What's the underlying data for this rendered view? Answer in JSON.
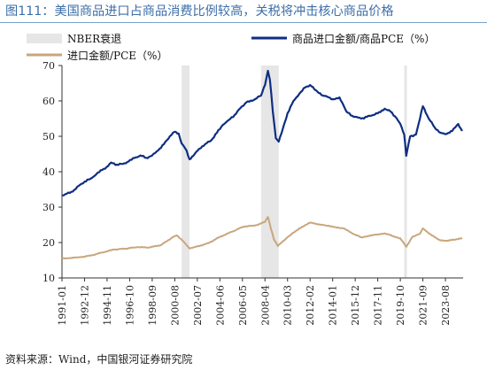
{
  "header": {
    "title": "图111：美国商品进口占商品消费比例较高，关税将冲击核心商品价格"
  },
  "footer": {
    "source": "资料来源：Wind，中国银河证券研究院"
  },
  "colors": {
    "title": "#3d6fa8",
    "series1": "#0f2e82",
    "series2": "#c9a67c",
    "recession": "#e6e6e6",
    "axis": "#333333"
  },
  "chart_data": {
    "type": "line",
    "title": "",
    "xlabel": "",
    "ylabel": "",
    "ylim": [
      10,
      70
    ],
    "yticks": [
      10,
      20,
      30,
      40,
      50,
      60,
      70
    ],
    "xlim": [
      "1991-01",
      "2025-02"
    ],
    "xtick_labels": [
      "1991-01",
      "1992-12",
      "1994-11",
      "1996-10",
      "1998-09",
      "2000-08",
      "2002-07",
      "2004-06",
      "2006-05",
      "2008-04",
      "2010-03",
      "2012-02",
      "2014-01",
      "2015-12",
      "2017-11",
      "2019-10",
      "2021-09",
      "2023-08"
    ],
    "grid": false,
    "legend": {
      "placement": "top",
      "entries": [
        {
          "key": "recession",
          "label": "NBER衰退"
        },
        {
          "key": "s1",
          "label": "商品进口金额/商品PCE（%）"
        },
        {
          "key": "s2",
          "label": "进口金额/PCE（%）"
        }
      ]
    },
    "recessions": [
      {
        "start": "2001-03",
        "end": "2001-11"
      },
      {
        "start": "2007-12",
        "end": "2009-06"
      },
      {
        "start": "2020-02",
        "end": "2020-04"
      }
    ],
    "series": [
      {
        "name": "商品进口金额/商品PCE（%）",
        "points": [
          [
            "1991-01",
            33.3
          ],
          [
            "1991-06",
            33.8
          ],
          [
            "1991-12",
            34.4
          ],
          [
            "1992-06",
            36.0
          ],
          [
            "1992-12",
            37.2
          ],
          [
            "1993-06",
            38.0
          ],
          [
            "1993-12",
            39.3
          ],
          [
            "1994-06",
            40.5
          ],
          [
            "1994-12",
            41.6
          ],
          [
            "1995-03",
            42.6
          ],
          [
            "1995-09",
            42.0
          ],
          [
            "1996-03",
            42.2
          ],
          [
            "1996-09",
            42.9
          ],
          [
            "1997-03",
            43.9
          ],
          [
            "1997-09",
            44.6
          ],
          [
            "1998-03",
            43.9
          ],
          [
            "1998-09",
            44.6
          ],
          [
            "1999-03",
            46.0
          ],
          [
            "1999-09",
            47.8
          ],
          [
            "2000-03",
            50.0
          ],
          [
            "2000-08",
            51.3
          ],
          [
            "2000-12",
            50.8
          ],
          [
            "2001-03",
            48.0
          ],
          [
            "2001-08",
            46.0
          ],
          [
            "2001-11",
            43.5
          ],
          [
            "2002-03",
            44.5
          ],
          [
            "2002-09",
            46.5
          ],
          [
            "2003-03",
            47.8
          ],
          [
            "2003-09",
            48.8
          ],
          [
            "2004-03",
            51.0
          ],
          [
            "2004-09",
            53.2
          ],
          [
            "2005-03",
            54.6
          ],
          [
            "2005-09",
            56.0
          ],
          [
            "2006-03",
            58.0
          ],
          [
            "2006-09",
            59.6
          ],
          [
            "2007-03",
            60.0
          ],
          [
            "2007-09",
            61.2
          ],
          [
            "2007-12",
            61.5
          ],
          [
            "2008-04",
            64.5
          ],
          [
            "2008-07",
            68.5
          ],
          [
            "2008-09",
            66.0
          ],
          [
            "2008-12",
            57.0
          ],
          [
            "2009-03",
            49.5
          ],
          [
            "2009-06",
            48.5
          ],
          [
            "2009-09",
            51.0
          ],
          [
            "2010-03",
            56.5
          ],
          [
            "2010-09",
            60.0
          ],
          [
            "2011-03",
            62.0
          ],
          [
            "2011-09",
            63.8
          ],
          [
            "2012-02",
            64.5
          ],
          [
            "2012-08",
            63.0
          ],
          [
            "2013-03",
            61.5
          ],
          [
            "2013-09",
            61.0
          ],
          [
            "2014-01",
            60.5
          ],
          [
            "2014-08",
            61.0
          ],
          [
            "2015-03",
            57.0
          ],
          [
            "2015-09",
            55.8
          ],
          [
            "2015-12",
            55.5
          ],
          [
            "2016-06",
            55.0
          ],
          [
            "2016-12",
            55.5
          ],
          [
            "2017-06",
            56.0
          ],
          [
            "2017-11",
            56.5
          ],
          [
            "2018-06",
            57.8
          ],
          [
            "2018-12",
            57.0
          ],
          [
            "2019-06",
            55.2
          ],
          [
            "2019-10",
            53.5
          ],
          [
            "2020-02",
            50.5
          ],
          [
            "2020-04",
            44.5
          ],
          [
            "2020-08",
            50.0
          ],
          [
            "2021-02",
            50.5
          ],
          [
            "2021-06",
            55.0
          ],
          [
            "2021-09",
            58.5
          ],
          [
            "2022-03",
            55.0
          ],
          [
            "2022-09",
            52.5
          ],
          [
            "2023-03",
            51.0
          ],
          [
            "2023-08",
            50.6
          ],
          [
            "2024-03",
            51.5
          ],
          [
            "2024-09",
            53.5
          ],
          [
            "2025-01",
            51.5
          ]
        ]
      },
      {
        "name": "进口金额/PCE（%）",
        "points": [
          [
            "1991-01",
            15.5
          ],
          [
            "1992-06",
            15.8
          ],
          [
            "1993-06",
            16.3
          ],
          [
            "1994-06",
            17.2
          ],
          [
            "1995-06",
            18.0
          ],
          [
            "1996-06",
            18.3
          ],
          [
            "1997-06",
            18.7
          ],
          [
            "1998-06",
            18.6
          ],
          [
            "1999-06",
            19.3
          ],
          [
            "2000-06",
            21.5
          ],
          [
            "2000-10",
            22.0
          ],
          [
            "2001-06",
            20.0
          ],
          [
            "2001-11",
            18.3
          ],
          [
            "2002-06",
            18.8
          ],
          [
            "2003-06",
            19.8
          ],
          [
            "2004-06",
            21.6
          ],
          [
            "2005-06",
            23.0
          ],
          [
            "2006-06",
            24.5
          ],
          [
            "2007-06",
            24.8
          ],
          [
            "2008-04",
            25.8
          ],
          [
            "2008-07",
            27.2
          ],
          [
            "2009-01",
            21.0
          ],
          [
            "2009-05",
            19.0
          ],
          [
            "2010-03",
            21.5
          ],
          [
            "2011-03",
            24.0
          ],
          [
            "2012-02",
            25.6
          ],
          [
            "2013-06",
            24.8
          ],
          [
            "2014-01",
            24.5
          ],
          [
            "2014-12",
            24.0
          ],
          [
            "2015-12",
            22.2
          ],
          [
            "2016-06",
            21.5
          ],
          [
            "2017-11",
            22.3
          ],
          [
            "2018-06",
            22.6
          ],
          [
            "2019-06",
            21.5
          ],
          [
            "2019-10",
            21.2
          ],
          [
            "2020-04",
            18.8
          ],
          [
            "2020-10",
            21.5
          ],
          [
            "2021-06",
            22.5
          ],
          [
            "2021-09",
            24.0
          ],
          [
            "2022-06",
            22.0
          ],
          [
            "2023-03",
            20.6
          ],
          [
            "2023-08",
            20.5
          ],
          [
            "2024-06",
            20.8
          ],
          [
            "2025-01",
            21.3
          ]
        ]
      }
    ]
  }
}
